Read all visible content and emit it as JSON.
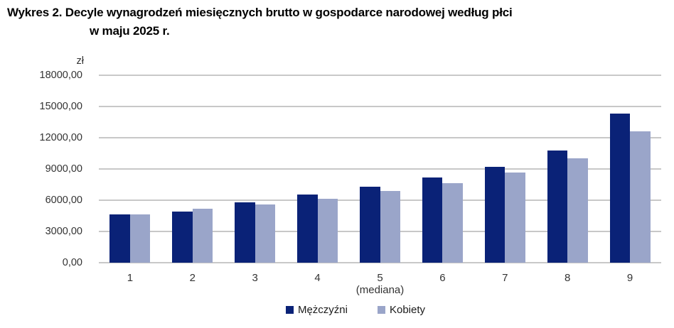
{
  "title": {
    "line1": "Wykres 2. Decyle wynagrodzeń miesięcznych brutto w gospodarce narodowej według płci",
    "line2": "w maju 2025 r."
  },
  "chart_data": {
    "type": "bar",
    "unit_label": "zł",
    "categories": [
      "1",
      "2",
      "3",
      "4",
      "5",
      "6",
      "7",
      "8",
      "9"
    ],
    "x_annotation": "(mediana)",
    "x_annotation_category": "5",
    "series": [
      {
        "name": "Mężczyźni",
        "color": "#0a2277",
        "values": [
          4670,
          4940,
          5780,
          6520,
          7310,
          8180,
          9210,
          10800,
          14350
        ]
      },
      {
        "name": "Kobiety",
        "color": "#9aa5c9",
        "values": [
          4650,
          5160,
          5610,
          6140,
          6870,
          7620,
          8640,
          10010,
          12580
        ]
      }
    ],
    "ylim": [
      0,
      18000
    ],
    "ytick_step": 3000,
    "ytick_labels": [
      "0,00",
      "3000,00",
      "6000,00",
      "9000,00",
      "12000,00",
      "15000,00",
      "18000,00"
    ],
    "grid": true,
    "gridline_color": "#c8c8c8",
    "legend_position": "bottom"
  }
}
